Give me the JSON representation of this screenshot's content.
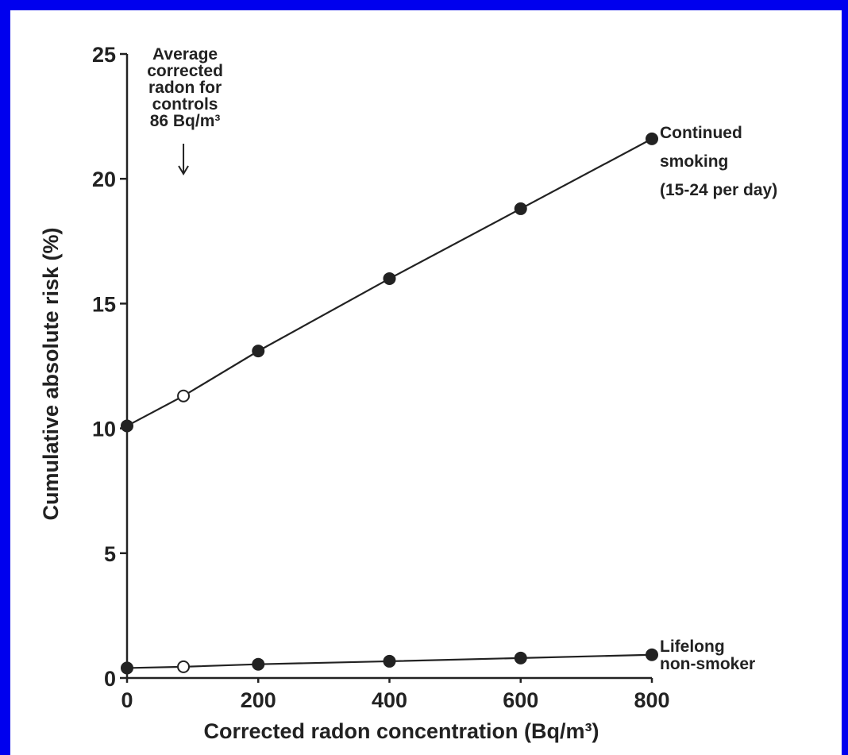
{
  "chart_data": {
    "type": "line",
    "xlabel": "Corrected radon concentration (Bq/m³)",
    "ylabel": "Cumulative absolute risk (%)",
    "xlim": [
      0,
      800
    ],
    "ylim": [
      0,
      25
    ],
    "x_ticks": [
      0,
      200,
      400,
      600,
      800
    ],
    "y_ticks": [
      0,
      5,
      10,
      15,
      20,
      25
    ],
    "grid": false,
    "series": [
      {
        "name": "Continued smoking (15-24 per day)",
        "label_lines": [
          "Continued",
          "smoking",
          "(15-24 per day)"
        ],
        "points": [
          {
            "x": 0,
            "y": 10.1,
            "filled": true
          },
          {
            "x": 86,
            "y": 11.3,
            "filled": false
          },
          {
            "x": 200,
            "y": 13.1,
            "filled": true
          },
          {
            "x": 400,
            "y": 16.0,
            "filled": true
          },
          {
            "x": 600,
            "y": 18.8,
            "filled": true
          },
          {
            "x": 800,
            "y": 21.6,
            "filled": true
          }
        ]
      },
      {
        "name": "Lifelong non-smoker",
        "label_lines": [
          "Lifelong",
          "non-smoker"
        ],
        "points": [
          {
            "x": 0,
            "y": 0.4,
            "filled": true
          },
          {
            "x": 86,
            "y": 0.45,
            "filled": false
          },
          {
            "x": 200,
            "y": 0.55,
            "filled": true
          },
          {
            "x": 400,
            "y": 0.67,
            "filled": true
          },
          {
            "x": 600,
            "y": 0.8,
            "filled": true
          },
          {
            "x": 800,
            "y": 0.93,
            "filled": true
          }
        ]
      }
    ],
    "annotation": {
      "lines": [
        "Average",
        "corrected",
        "radon for",
        "controls",
        "86 Bq/m³"
      ],
      "x": 86,
      "arrow": "down"
    }
  },
  "colors": {
    "frame": "#0000ee",
    "background": "#ffffff",
    "ink": "#222222"
  }
}
